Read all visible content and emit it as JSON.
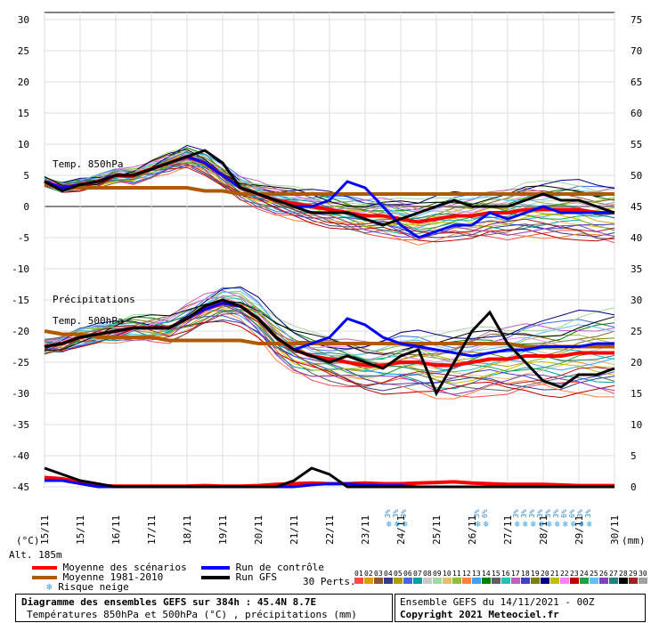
{
  "chart_data": {
    "type": "line",
    "title": "Diagramme des ensembles GEFS sur 384h : 45.4N 8.7E",
    "subtitle": "Températures 850hPa et 500hPa (°C) , précipitations (mm)",
    "left_axis_unit": "(°C)",
    "right_axis_unit": "(mm)",
    "left_ticks": [
      30,
      25,
      20,
      15,
      10,
      5,
      0,
      -5,
      -10,
      -15,
      -20,
      -25,
      -30,
      -35,
      -40,
      -45
    ],
    "right_ticks": [
      75,
      70,
      65,
      60,
      55,
      50,
      45,
      40,
      35,
      30,
      25,
      20,
      15,
      10,
      5,
      0
    ],
    "x_ticks": [
      "15/11",
      "15/11",
      "16/11",
      "17/11",
      "18/11",
      "19/11",
      "20/11",
      "21/11",
      "22/11",
      "23/11",
      "24/11",
      "25/11",
      "26/11",
      "27/11",
      "28/11",
      "29/11",
      "30/11"
    ],
    "ylim_temp": [
      -45,
      30
    ],
    "ylim_precip": [
      0,
      75
    ],
    "annotations": {
      "t850": "Temp. 850hPa",
      "precip": "Précipitations",
      "t500": "Temp. 500hPa",
      "alt": "Alt. 185m"
    },
    "snow_days": [
      {
        "x": 9.7,
        "values": [
          "3%",
          "3%",
          "3%"
        ]
      },
      {
        "x": 12.2,
        "values": [
          "3%",
          "6%"
        ]
      },
      {
        "x": 13.3,
        "values": [
          "3%",
          "3%",
          "3%",
          "3%",
          "3%",
          "3%",
          "6%",
          "6%",
          "3%",
          "3%"
        ]
      }
    ],
    "series": [
      {
        "name": "Moyenne des scénarios",
        "color": "#ff0000",
        "t850": [
          4,
          3,
          3.5,
          4,
          5,
          5,
          6,
          7,
          8,
          7,
          5,
          3,
          2,
          1,
          0.5,
          0,
          -0.5,
          -1,
          -1.5,
          -1.5,
          -2,
          -2.5,
          -2,
          -1.5,
          -1.5,
          -1,
          -1,
          -0.5,
          -0.5,
          -0.5,
          -0.5,
          -1,
          -1
        ],
        "t500": [
          -22.5,
          -22,
          -21,
          -20.5,
          -20,
          -19.5,
          -19.5,
          -19.5,
          -18,
          -16.5,
          -15.5,
          -16,
          -18,
          -21,
          -23,
          -24,
          -24.5,
          -25,
          -25.5,
          -25.5,
          -25,
          -25,
          -25.5,
          -25.5,
          -25,
          -24.5,
          -24.5,
          -24,
          -24,
          -24,
          -23.5,
          -23.5,
          -23.5
        ],
        "precip": [
          1.5,
          1.3,
          0.7,
          0.2,
          0.1,
          0.1,
          0.1,
          0.1,
          0.1,
          0.2,
          0.1,
          0.1,
          0.2,
          0.4,
          0.5,
          0.6,
          0.5,
          0.5,
          0.6,
          0.5,
          0.5,
          0.6,
          0.7,
          0.8,
          0.6,
          0.5,
          0.4,
          0.4,
          0.4,
          0.3,
          0.2,
          0.2,
          0.2
        ]
      },
      {
        "name": "Moyenne 1981-2010",
        "color": "#b05a00",
        "t850": [
          3.5,
          3,
          3,
          3,
          3,
          3,
          3,
          3,
          3,
          2.5,
          2.5,
          2,
          2,
          2,
          2,
          2,
          2,
          2,
          2,
          2,
          2,
          2,
          2,
          2,
          2,
          2,
          2,
          2,
          2,
          2,
          2,
          2,
          2
        ],
        "t500": [
          -20,
          -20.5,
          -20.5,
          -21,
          -21,
          -21,
          -21,
          -21.5,
          -21.5,
          -21.5,
          -21.5,
          -21.5,
          -22,
          -22,
          -22,
          -22,
          -22,
          -22,
          -22,
          -22,
          -22,
          -22,
          -22,
          -22,
          -22,
          -22,
          -22,
          -22.5,
          -22.5,
          -22.5,
          -22.5,
          -22.5,
          -22.5
        ]
      },
      {
        "name": "Run de contrôle",
        "color": "#0000ff",
        "t850": [
          4,
          3,
          3.5,
          4,
          5,
          5,
          6,
          7,
          8,
          7,
          5,
          3,
          2,
          1,
          0,
          0,
          1,
          4,
          3,
          0,
          -3,
          -5,
          -4,
          -3,
          -3,
          -1,
          -2,
          -1,
          0,
          -1,
          -1,
          -1,
          -1
        ],
        "t500": [
          -22.5,
          -22,
          -21,
          -20.5,
          -20,
          -19.5,
          -19.5,
          -19.5,
          -18,
          -16.5,
          -15.5,
          -16,
          -18,
          -21,
          -23,
          -22,
          -21,
          -18,
          -19,
          -21,
          -22,
          -22.5,
          -23,
          -23.5,
          -24,
          -23.5,
          -23,
          -23,
          -22.5,
          -22.5,
          -22.5,
          -22,
          -22
        ],
        "precip": [
          1,
          1,
          0.5,
          0,
          0,
          0,
          0,
          0,
          0,
          0,
          0,
          0,
          0,
          0,
          0,
          0.3,
          0.5,
          0.5,
          0.3,
          0.2,
          0.2,
          0,
          0,
          0,
          0,
          0,
          0,
          0,
          0,
          0,
          0,
          0,
          0
        ]
      },
      {
        "name": "Run GFS",
        "color": "#000000",
        "t850": [
          4,
          2.5,
          3.5,
          4,
          5,
          5,
          6,
          7,
          8,
          9,
          7,
          3,
          2,
          1,
          0,
          -1,
          -1,
          -1,
          -2,
          -3,
          -2,
          -1,
          0,
          1,
          0,
          0,
          0,
          1,
          2,
          1,
          1,
          0,
          -1
        ],
        "t500": [
          -22.5,
          -22,
          -21,
          -20.5,
          -20,
          -19.5,
          -19.5,
          -19.5,
          -18,
          -16,
          -15,
          -16,
          -18,
          -21,
          -23,
          -24,
          -25,
          -24,
          -25,
          -26,
          -24,
          -23,
          -30,
          -25,
          -20,
          -17,
          -22,
          -25,
          -28,
          -29,
          -27,
          -27,
          -26
        ],
        "precip": [
          3,
          2,
          1,
          0.5,
          0,
          0,
          0,
          0,
          0,
          0,
          0,
          0,
          0,
          0,
          1,
          3,
          2,
          0,
          0,
          0,
          0,
          0,
          0,
          0,
          0,
          0,
          0,
          0,
          0,
          0,
          0,
          0,
          0
        ]
      }
    ],
    "ensemble_count": "30 Perts.",
    "members": [
      {
        "id": "01",
        "color": "#ff4b4b"
      },
      {
        "id": "02",
        "color": "#d9a000"
      },
      {
        "id": "03",
        "color": "#8c5a2a"
      },
      {
        "id": "04",
        "color": "#3a3a8c"
      },
      {
        "id": "05",
        "color": "#b29900"
      },
      {
        "id": "06",
        "color": "#4169e1"
      },
      {
        "id": "07",
        "color": "#00a0a0"
      },
      {
        "id": "08",
        "color": "#c8c8c8"
      },
      {
        "id": "09",
        "color": "#a0d8a0"
      },
      {
        "id": "10",
        "color": "#e0c070"
      },
      {
        "id": "11",
        "color": "#90c030"
      },
      {
        "id": "12",
        "color": "#ff8040"
      },
      {
        "id": "13",
        "color": "#40a0ff"
      },
      {
        "id": "14",
        "color": "#008000"
      },
      {
        "id": "15",
        "color": "#606060"
      },
      {
        "id": "16",
        "color": "#20c0c0"
      },
      {
        "id": "17",
        "color": "#c060c0"
      },
      {
        "id": "18",
        "color": "#4040c0"
      },
      {
        "id": "19",
        "color": "#808000"
      },
      {
        "id": "20",
        "color": "#000080"
      },
      {
        "id": "21",
        "color": "#c0c000"
      },
      {
        "id": "22",
        "color": "#ff80ff"
      },
      {
        "id": "23",
        "color": "#c00000"
      },
      {
        "id": "24",
        "color": "#20a040"
      },
      {
        "id": "25",
        "color": "#60c0ff"
      },
      {
        "id": "26",
        "color": "#8040c0"
      },
      {
        "id": "27",
        "color": "#208080"
      },
      {
        "id": "28",
        "color": "#000000"
      },
      {
        "id": "29",
        "color": "#a02020"
      },
      {
        "id": "30",
        "color": "#a0a0a0"
      }
    ]
  },
  "legend": {
    "mean_label": "Moyenne des scénarios",
    "clim_label": "Moyenne 1981-2010",
    "control_label": "Run de contrôle",
    "gfs_label": "Run GFS",
    "snow_label": "Risque neige",
    "perts_label": "30 Perts."
  },
  "footer": {
    "title": "Diagramme des ensembles GEFS sur 384h : 45.4N 8.7E",
    "subtitle": "Températures 850hPa et 500hPa (°C) , précipitations (mm)",
    "run_info": "Ensemble GEFS du 14/11/2021 - 00Z",
    "copyright": "Copyright 2021 Meteociel.fr"
  }
}
